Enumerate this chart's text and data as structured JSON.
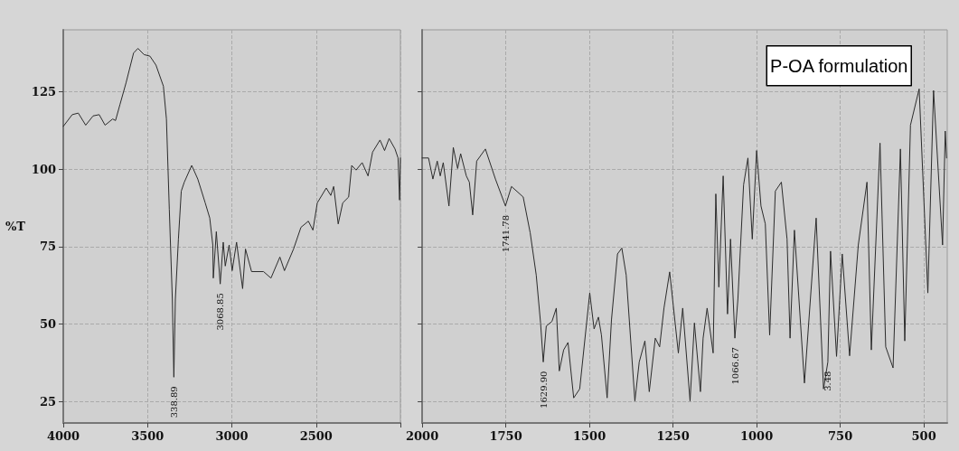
{
  "chart_data": [
    {
      "type": "line",
      "ylabel": "%T",
      "xlim": [
        4000,
        2000
      ],
      "ylim": [
        18,
        145
      ],
      "xticks": [
        4000,
        3500,
        3000,
        2500,
        {
          "value": 2000,
          "label": null
        }
      ],
      "yticks": [
        25,
        50,
        75,
        100,
        125
      ],
      "grid": true,
      "x": [
        4000,
        3947,
        3911,
        3867,
        3823,
        3787,
        3752,
        3707,
        3690,
        3663,
        3628,
        3583,
        3557,
        3521,
        3486,
        3450,
        3406,
        3388,
        3371,
        3353,
        3344,
        3335,
        3317,
        3300,
        3282,
        3238,
        3202,
        3158,
        3131,
        3113,
        3110,
        3092,
        3069,
        3051,
        3039,
        3016,
        2998,
        2972,
        2936,
        2919,
        2883,
        2812,
        2768,
        2715,
        2688,
        2634,
        2590,
        2546,
        2519,
        2493,
        2440,
        2413,
        2396,
        2369,
        2342,
        2307,
        2289,
        2263,
        2227,
        2192,
        2165,
        2121,
        2094,
        2067,
        2032,
        2014,
        2005,
        2000
      ],
      "values": [
        113.8,
        117.6,
        118.1,
        114.2,
        117.2,
        117.6,
        114.2,
        116.2,
        115.7,
        121,
        127.8,
        137.5,
        139,
        137,
        136.5,
        133.6,
        126.8,
        116.2,
        87.1,
        58,
        32.8,
        58,
        77.4,
        92.9,
        95.8,
        101.2,
        96.8,
        89.1,
        84.2,
        75.5,
        64.8,
        79.8,
        62.9,
        76.4,
        68.7,
        75.5,
        67.2,
        76.4,
        61.4,
        74.2,
        66.9,
        66.9,
        64.8,
        71.6,
        67.2,
        74.2,
        81.2,
        83.2,
        80.3,
        89.1,
        93.9,
        91.5,
        94.4,
        82.3,
        89.1,
        91,
        101.2,
        99.7,
        102.1,
        97.8,
        105.5,
        109.4,
        106,
        109.9,
        106.5,
        103.6,
        90,
        103.6
      ],
      "color": "#2b2b2b",
      "annotations": [
        {
          "text": "338.89",
          "x": 3344,
          "y": 32.8
        },
        {
          "text": "3068.85",
          "x": 3069,
          "y": 62.9
        }
      ]
    },
    {
      "type": "line",
      "xlim": [
        2000,
        430
      ],
      "ylim": [
        18,
        145
      ],
      "xticks": [
        2000,
        1750,
        1500,
        1250,
        1000,
        750,
        500
      ],
      "yticks": [
        25,
        50,
        75,
        100,
        125
      ],
      "grid": true,
      "tick_labels": "x",
      "x": [
        2000,
        1981,
        1968,
        1955,
        1946,
        1937,
        1920,
        1907,
        1894,
        1885,
        1868,
        1859,
        1849,
        1837,
        1811,
        1781,
        1751,
        1733,
        1698,
        1677,
        1659,
        1646,
        1638,
        1629,
        1612,
        1599,
        1590,
        1577,
        1564,
        1547,
        1529,
        1499,
        1486,
        1473,
        1464,
        1447,
        1434,
        1416,
        1403,
        1390,
        1364,
        1351,
        1334,
        1321,
        1303,
        1290,
        1277,
        1260,
        1234,
        1221,
        1199,
        1186,
        1168,
        1160,
        1148,
        1130,
        1122,
        1113,
        1100,
        1087,
        1078,
        1065,
        1056,
        1039,
        1026,
        1013,
        1000,
        987,
        974,
        961,
        944,
        926,
        909,
        900,
        887,
        857,
        822,
        800,
        787,
        779,
        761,
        744,
        722,
        696,
        670,
        657,
        631,
        614,
        592,
        570,
        557,
        540,
        514,
        488,
        471,
        444,
        436,
        432
      ],
      "values": [
        103.6,
        103.6,
        96.8,
        102.6,
        97.8,
        102.1,
        88.1,
        107,
        100.2,
        105,
        97.8,
        95.8,
        85.2,
        102.6,
        106.5,
        96.8,
        88.1,
        94.4,
        91,
        79.4,
        65.8,
        50.3,
        37.7,
        49.3,
        50.8,
        55.1,
        34.8,
        41.6,
        44,
        26.1,
        29,
        60,
        48.4,
        52.2,
        46.4,
        26.1,
        51.3,
        72.6,
        74.5,
        65.8,
        25.1,
        37.7,
        44.5,
        28.1,
        45.4,
        42.6,
        55.1,
        66.8,
        40.6,
        55.1,
        25.1,
        50.3,
        28.1,
        45.4,
        55.1,
        40.6,
        92,
        61.9,
        97.8,
        53.2,
        77.4,
        45.4,
        58,
        94.9,
        103.6,
        77.4,
        106,
        88.1,
        82.3,
        46.4,
        92.9,
        95.8,
        77.4,
        45.4,
        80.3,
        30.9,
        84.2,
        29,
        37.7,
        73.5,
        39.5,
        72.6,
        39.7,
        75.5,
        95.8,
        41.6,
        108.4,
        42.6,
        35.8,
        106.5,
        44.5,
        114.2,
        125.9,
        60,
        125.4,
        75.5,
        112.3,
        103.6
      ],
      "color": "#2b2b2b",
      "annotations": [
        "P-OA formulation",
        {
          "text": "1741.78",
          "x": 1751,
          "y": 88.1
        },
        {
          "text": "1629.90",
          "x": 1638,
          "y": 37.7
        },
        {
          "text": "1066.67",
          "x": 1065,
          "y": 45.4
        },
        {
          "text": "3.48",
          "x": 787,
          "y": 37.7
        }
      ]
    }
  ]
}
